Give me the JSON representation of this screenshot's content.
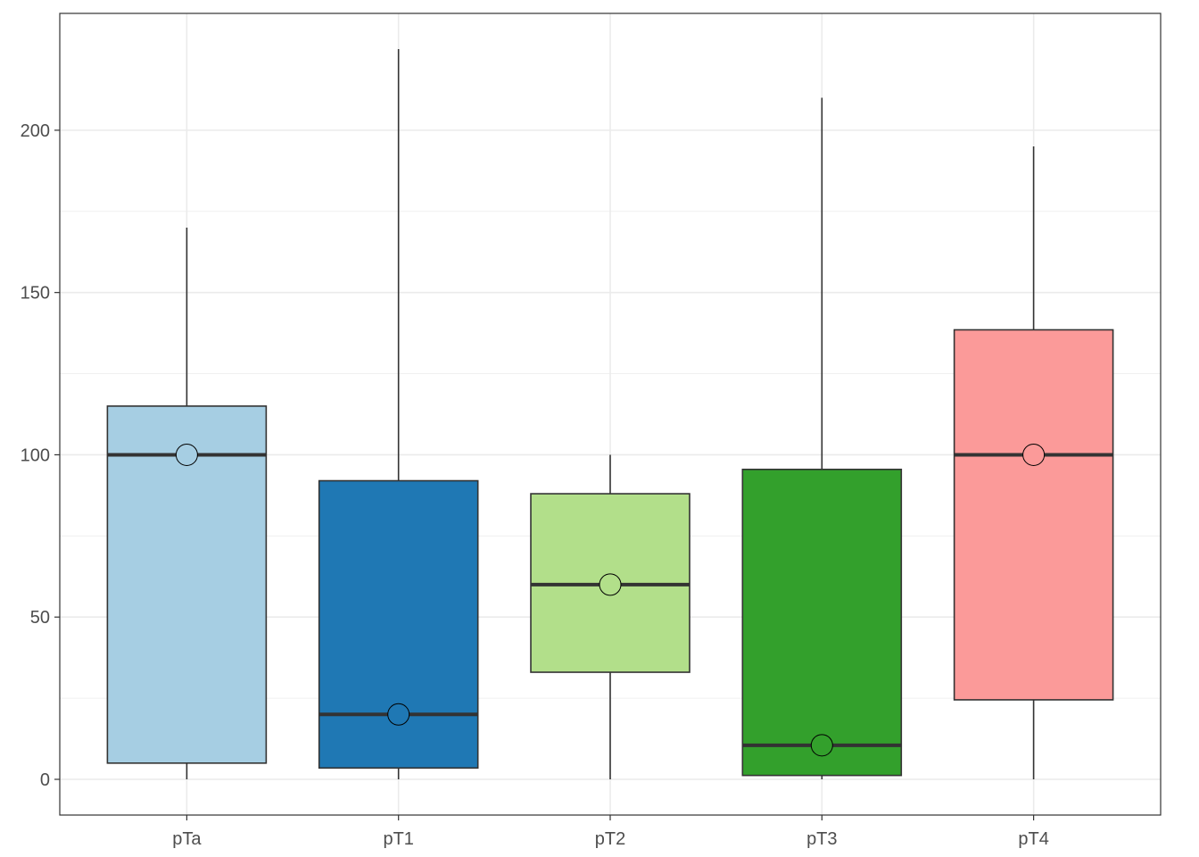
{
  "chart_data": {
    "type": "box",
    "title": "",
    "xlabel": "",
    "ylabel": "",
    "ylim": [
      -11,
      236
    ],
    "grid": true,
    "y_ticks": [
      0,
      50,
      100,
      150,
      200
    ],
    "y_tick_labels": [
      "0",
      "50",
      "100",
      "150",
      "200"
    ],
    "categories": [
      "pTa",
      "pT1",
      "pT2",
      "pT3",
      "pT4"
    ],
    "boxes": [
      {
        "category": "pTa",
        "min": 0,
        "q1": 5,
        "median": 100,
        "q3": 115,
        "max": 170,
        "mean": 100,
        "color": "#a6cee3"
      },
      {
        "category": "pT1",
        "min": 0,
        "q1": 3.5,
        "median": 20,
        "q3": 92,
        "max": 225,
        "mean": 20,
        "color": "#1f78b4"
      },
      {
        "category": "pT2",
        "min": 0,
        "q1": 33,
        "median": 60,
        "q3": 88,
        "max": 100,
        "mean": 60,
        "color": "#b2df8a"
      },
      {
        "category": "pT3",
        "min": 0,
        "q1": 1.2,
        "median": 10.5,
        "q3": 95.5,
        "max": 210,
        "mean": 10.5,
        "color": "#33a02c"
      },
      {
        "category": "pT4",
        "min": 0,
        "q1": 24.5,
        "median": 100,
        "q3": 138.5,
        "max": 195,
        "mean": 100,
        "color": "#fb9a99"
      }
    ]
  }
}
